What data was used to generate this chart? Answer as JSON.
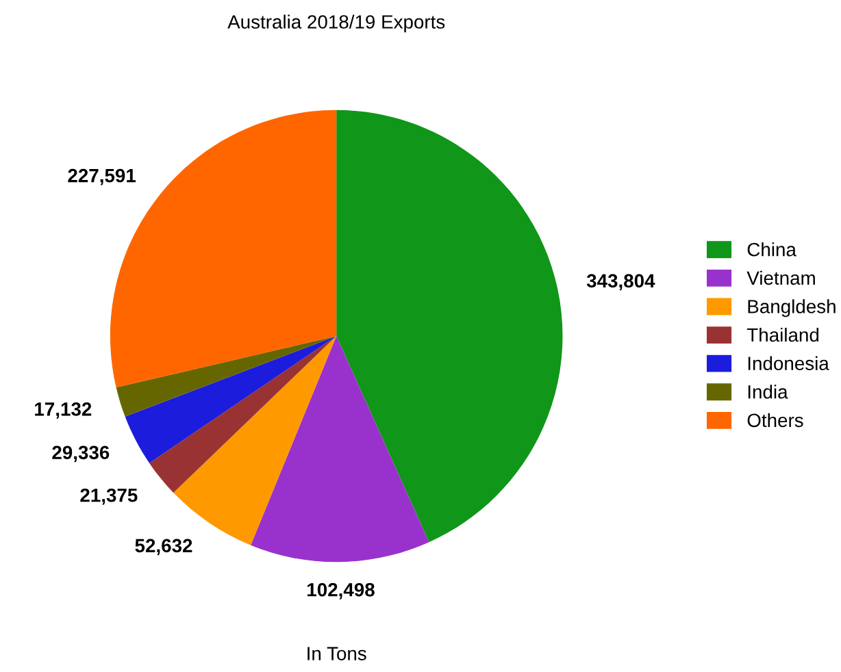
{
  "chart_data": {
    "type": "pie",
    "title": "Australia 2018/19 Exports",
    "xlabel": "In Tons",
    "categories": [
      "China",
      "Vietnam",
      "Bangldesh",
      "Thailand",
      "Indonesia",
      "India",
      "Others"
    ],
    "values": [
      343804,
      102498,
      52632,
      21375,
      29336,
      17132,
      227591
    ],
    "value_labels": [
      "343,804",
      "102,498",
      "52,632",
      "21,375",
      "29,336",
      "17,132",
      "227,591"
    ],
    "colors": [
      "#109618",
      "#9932cc",
      "#ff9900",
      "#993333",
      "#1c1cdd",
      "#666600",
      "#ff6600"
    ],
    "legend": "right"
  }
}
